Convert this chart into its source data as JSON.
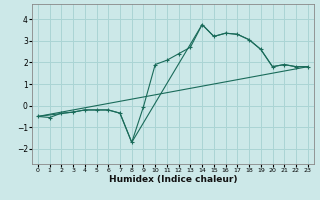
{
  "xlabel": "Humidex (Indice chaleur)",
  "ylabel": "",
  "bg_color": "#cce8e8",
  "grid_color": "#aad4d4",
  "line_color": "#1a6b5a",
  "xlim": [
    -0.5,
    23.5
  ],
  "ylim": [
    -2.7,
    4.7
  ],
  "yticks": [
    -2,
    -1,
    0,
    1,
    2,
    3,
    4
  ],
  "xticks": [
    0,
    1,
    2,
    3,
    4,
    5,
    6,
    7,
    8,
    9,
    10,
    11,
    12,
    13,
    14,
    15,
    16,
    17,
    18,
    19,
    20,
    21,
    22,
    23
  ],
  "line1_x": [
    0,
    1,
    2,
    3,
    4,
    5,
    6,
    7,
    8,
    9,
    10,
    11,
    12,
    13,
    14,
    15,
    16,
    17,
    18,
    19,
    20,
    21,
    22,
    23
  ],
  "line1_y": [
    -0.5,
    -0.55,
    -0.35,
    -0.3,
    -0.2,
    -0.2,
    -0.2,
    -0.35,
    -1.7,
    -0.05,
    1.9,
    2.1,
    2.4,
    2.7,
    3.75,
    3.2,
    3.35,
    3.3,
    3.05,
    2.6,
    1.8,
    1.9,
    1.8,
    1.8
  ],
  "line2_x": [
    0,
    3,
    4,
    5,
    6,
    7,
    8,
    14,
    15,
    16,
    17,
    18,
    19,
    20,
    21,
    22,
    23
  ],
  "line2_y": [
    -0.5,
    -0.3,
    -0.2,
    -0.2,
    -0.2,
    -0.35,
    -1.7,
    3.75,
    3.2,
    3.35,
    3.3,
    3.05,
    2.6,
    1.8,
    1.9,
    1.8,
    1.8
  ],
  "line3_x": [
    0,
    23
  ],
  "line3_y": [
    -0.5,
    1.8
  ]
}
